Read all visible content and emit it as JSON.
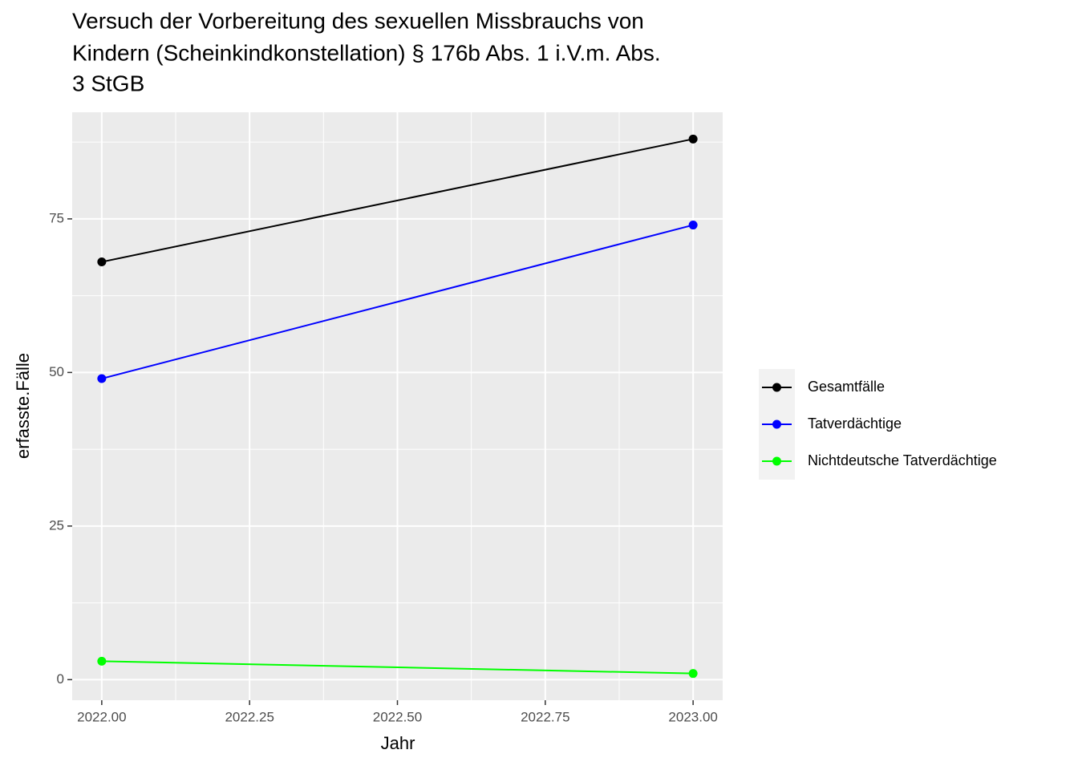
{
  "chart_data": {
    "type": "line",
    "title": [
      "Versuch der Vorbereitung des sexuellen Missbrauchs von",
      "Kindern (Scheinkindkonstellation) § 176b Abs. 1 i.V.m. Abs.",
      "3 StGB"
    ],
    "x_label": "Jahr",
    "y_label": "erfasste.Fälle",
    "x": [
      2022,
      2023
    ],
    "series": [
      {
        "name": "Gesamtfälle",
        "color": "#000000",
        "values": [
          68,
          88
        ]
      },
      {
        "name": "Tatverdächtige",
        "color": "#0000ff",
        "values": [
          49,
          74
        ]
      },
      {
        "name": "Nichtdeutsche Tatverdächtige",
        "color": "#00ff00",
        "values": [
          3,
          1
        ]
      }
    ],
    "xlim": [
      2021.95,
      2023.05
    ],
    "xticks": [
      {
        "value": 2022,
        "label": "2022.00"
      },
      {
        "value": 2022.25,
        "label": "2022.25"
      },
      {
        "value": 2022.5,
        "label": "2022.50"
      },
      {
        "value": 2022.75,
        "label": "2022.75"
      },
      {
        "value": 2023,
        "label": "2023.00"
      }
    ],
    "ylim": [
      -3.35,
      92.35
    ],
    "yticks": [
      0,
      25,
      50,
      75
    ],
    "grid": true,
    "legend": "right"
  }
}
